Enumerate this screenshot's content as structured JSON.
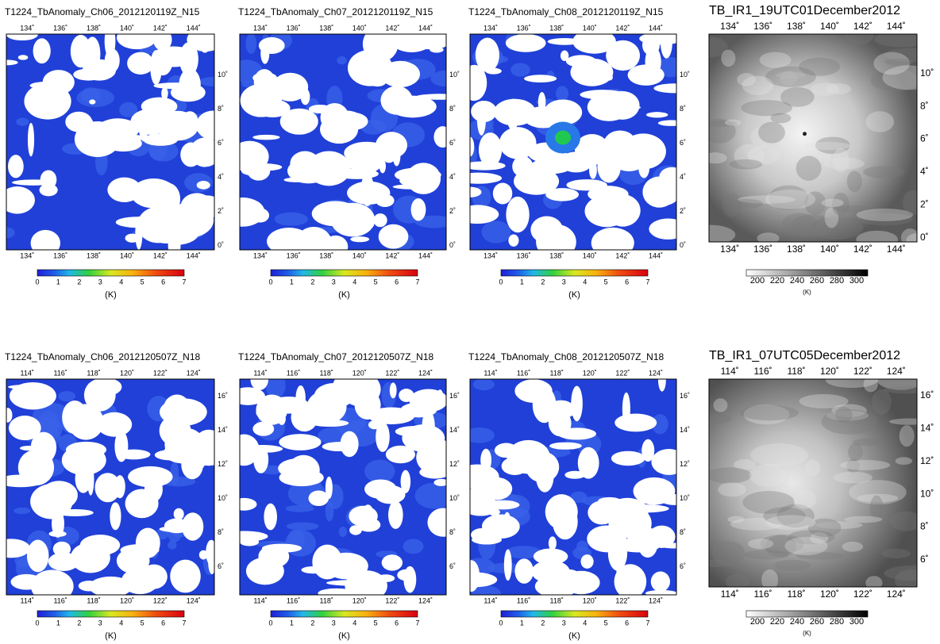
{
  "panels": [
    {
      "title": "T1224_TbAnomaly_Ch06_2012120119Z_N15",
      "x_ticks": [
        "134˚",
        "136˚",
        "138˚",
        "140˚",
        "142˚",
        "144˚"
      ],
      "y_ticks": [
        "0˚",
        "2˚",
        "4˚",
        "6˚",
        "8˚",
        "10˚"
      ],
      "colorbar_ticks": [
        0,
        1,
        2,
        3,
        4,
        5,
        6,
        7
      ],
      "unit": "(K)"
    },
    {
      "title": "T1224_TbAnomaly_Ch07_2012120119Z_N15",
      "x_ticks": [
        "134˚",
        "136˚",
        "138˚",
        "140˚",
        "142˚",
        "144˚"
      ],
      "y_ticks": [
        "0˚",
        "2˚",
        "4˚",
        "6˚",
        "8˚",
        "10˚"
      ],
      "colorbar_ticks": [
        0,
        1,
        2,
        3,
        4,
        5,
        6,
        7
      ],
      "unit": "(K)"
    },
    {
      "title": "T1224_TbAnomaly_Ch08_2012120119Z_N15",
      "x_ticks": [
        "134˚",
        "136˚",
        "138˚",
        "140˚",
        "142˚",
        "144˚"
      ],
      "y_ticks": [
        "0˚",
        "2˚",
        "4˚",
        "6˚",
        "8˚",
        "10˚"
      ],
      "colorbar_ticks": [
        0,
        1,
        2,
        3,
        4,
        5,
        6,
        7
      ],
      "unit": "(K)"
    },
    {
      "title": "TB_IR1_19UTC01December2012",
      "x_ticks": [
        "134˚",
        "136˚",
        "138˚",
        "140˚",
        "142˚",
        "144˚"
      ],
      "y_ticks": [
        "0˚",
        "2˚",
        "4˚",
        "6˚",
        "8˚",
        "10˚"
      ],
      "colorbar_ticks": [
        200,
        220,
        240,
        260,
        280,
        300
      ],
      "unit": "(K)"
    },
    {
      "title": "T1224_TbAnomaly_Ch06_2012120507Z_N18",
      "x_ticks": [
        "114˚",
        "116˚",
        "118˚",
        "120˚",
        "122˚",
        "124˚"
      ],
      "y_ticks": [
        "6˚",
        "8˚",
        "10˚",
        "12˚",
        "14˚",
        "16˚"
      ],
      "colorbar_ticks": [
        0,
        1,
        2,
        3,
        4,
        5,
        6,
        7
      ],
      "unit": "(K)"
    },
    {
      "title": "T1224_TbAnomaly_Ch07_2012120507Z_N18",
      "x_ticks": [
        "114˚",
        "116˚",
        "118˚",
        "120˚",
        "122˚",
        "124˚"
      ],
      "y_ticks": [
        "6˚",
        "8˚",
        "10˚",
        "12˚",
        "14˚",
        "16˚"
      ],
      "colorbar_ticks": [
        0,
        1,
        2,
        3,
        4,
        5,
        6,
        7
      ],
      "unit": "(K)"
    },
    {
      "title": "T1224_TbAnomaly_Ch08_2012120507Z_N18",
      "x_ticks": [
        "114˚",
        "116˚",
        "118˚",
        "120˚",
        "122˚",
        "124˚"
      ],
      "y_ticks": [
        "6˚",
        "8˚",
        "10˚",
        "12˚",
        "14˚",
        "16˚"
      ],
      "colorbar_ticks": [
        0,
        1,
        2,
        3,
        4,
        5,
        6,
        7
      ],
      "unit": "(K)"
    },
    {
      "title": "TB_IR1_07UTC05December2012",
      "x_ticks": [
        "114˚",
        "116˚",
        "118˚",
        "120˚",
        "122˚",
        "124˚"
      ],
      "y_ticks": [
        "6˚",
        "8˚",
        "10˚",
        "12˚",
        "14˚",
        "16˚"
      ],
      "colorbar_ticks": [
        200,
        220,
        240,
        260,
        280,
        300
      ],
      "unit": "(K)"
    }
  ]
}
